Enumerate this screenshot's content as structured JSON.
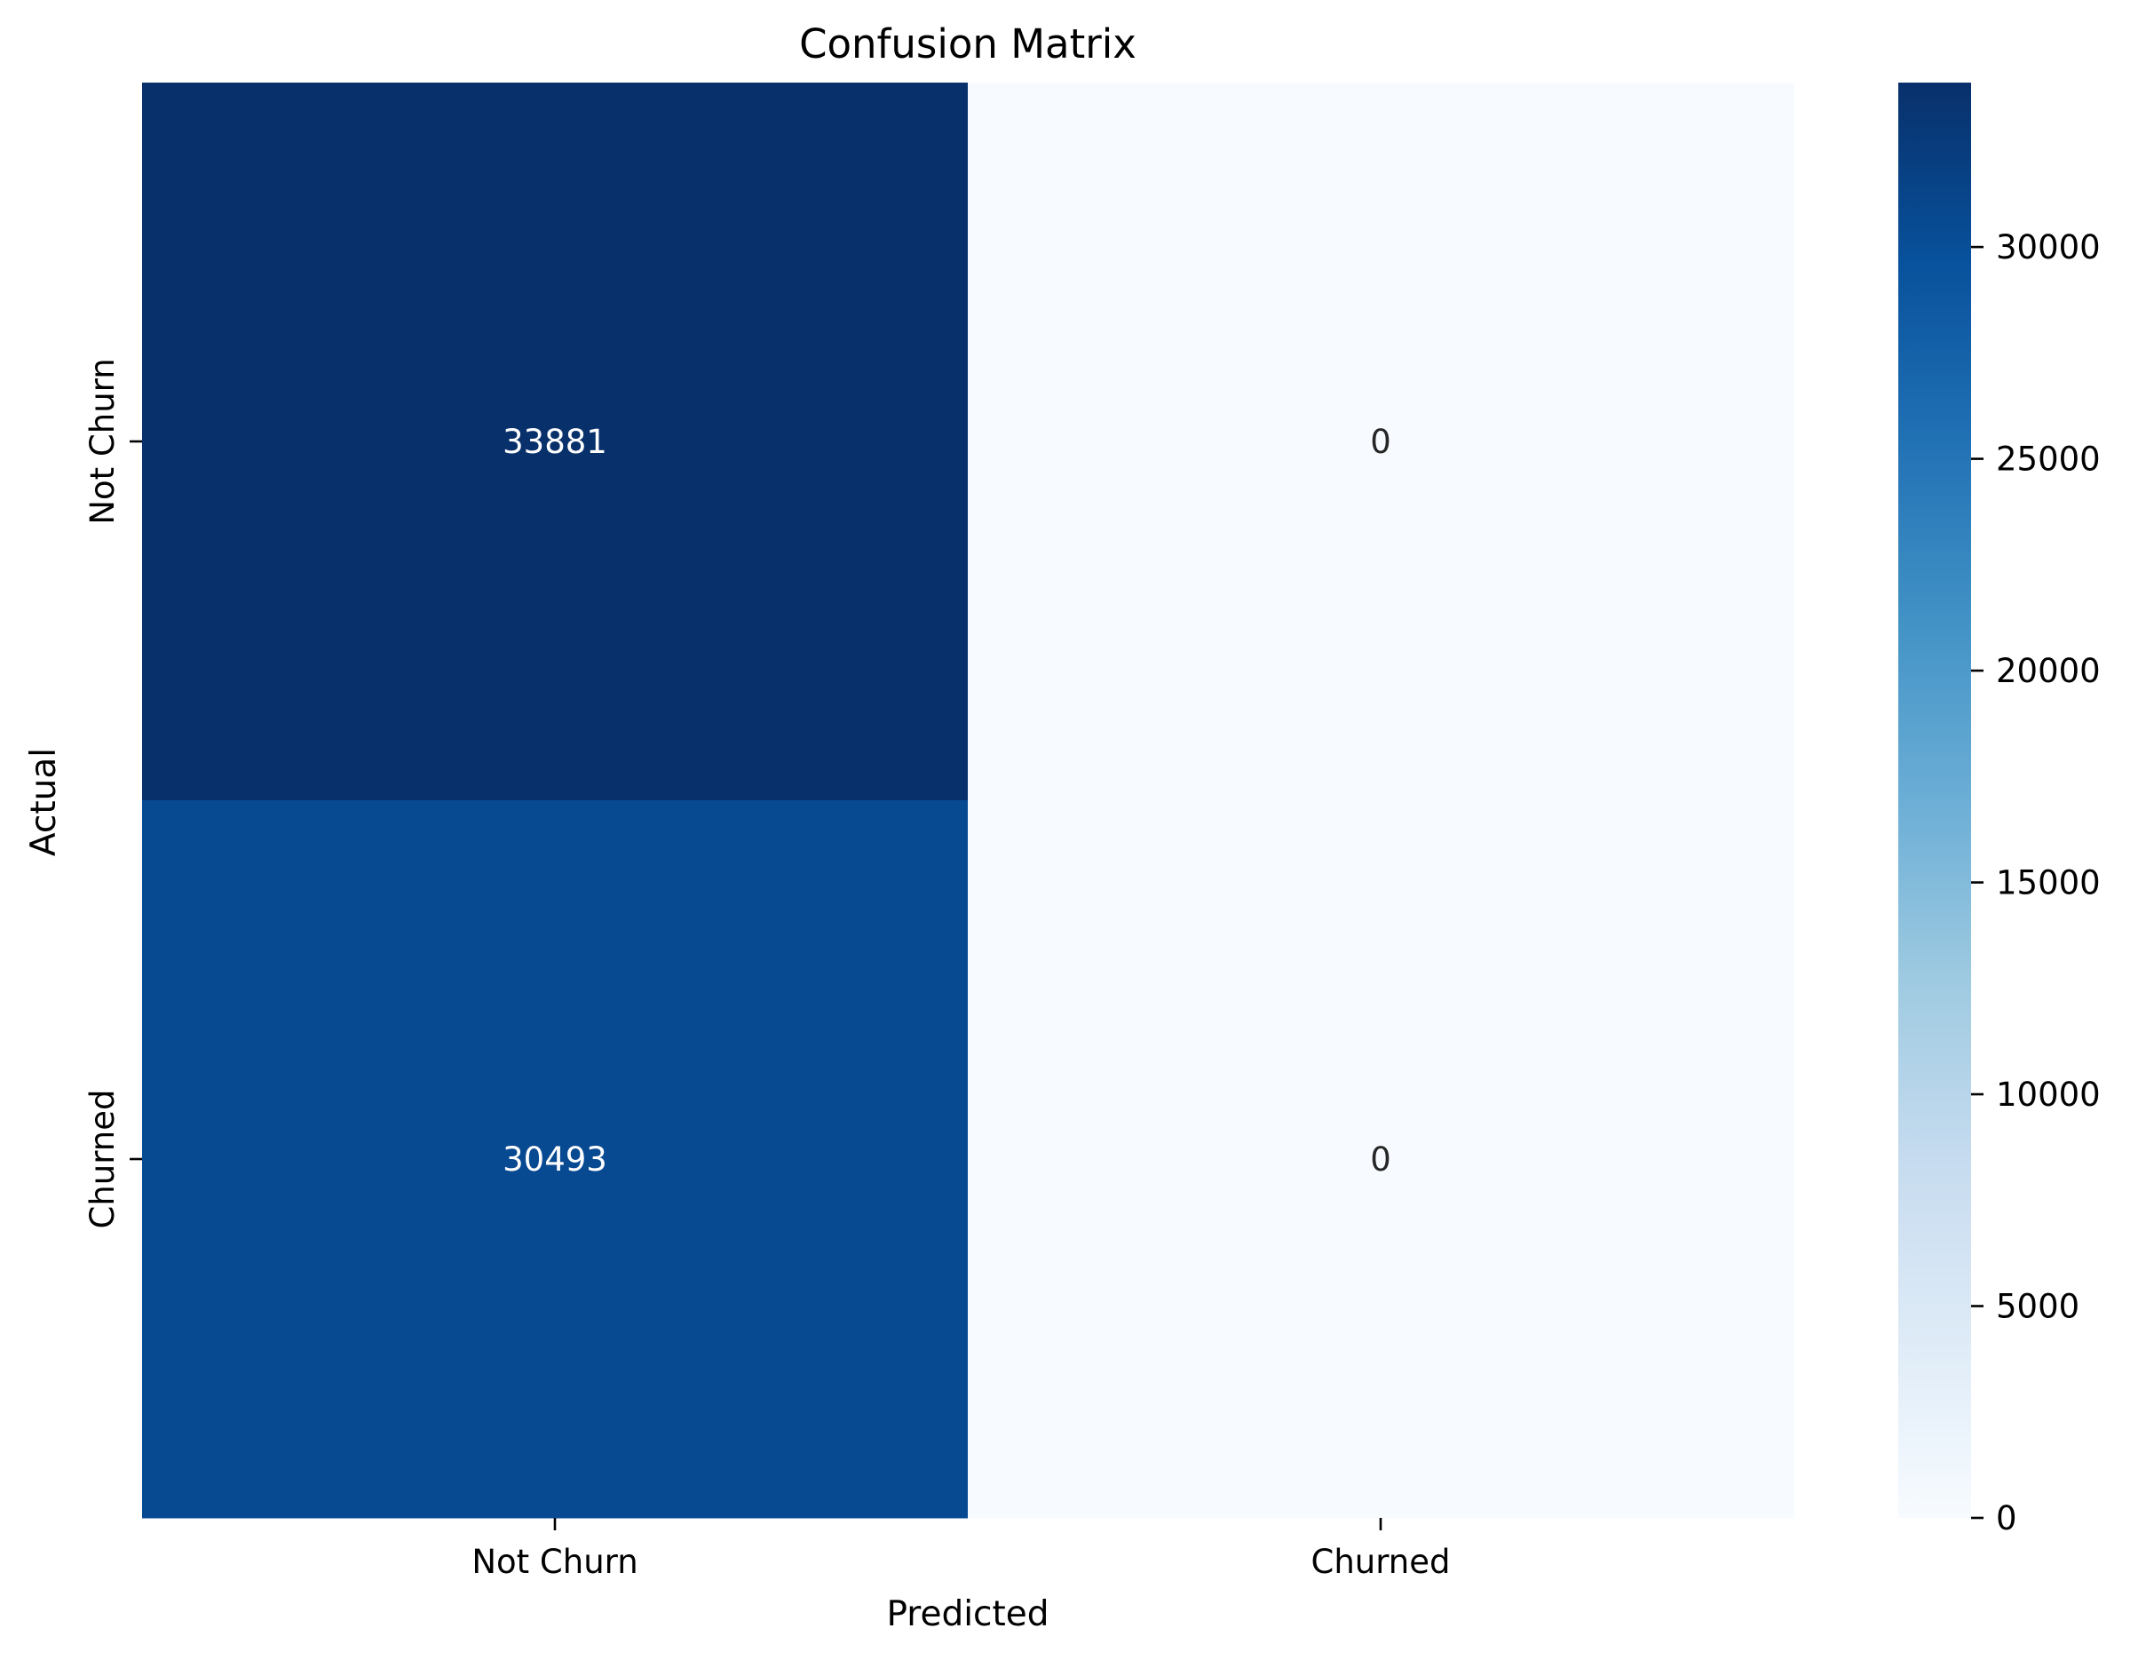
{
  "chart_data": {
    "type": "heatmap",
    "title": "Confusion Matrix",
    "xlabel": "Predicted",
    "ylabel": "Actual",
    "x_categories": [
      "Not Churn",
      "Churned"
    ],
    "y_categories": [
      "Not Churn",
      "Churned"
    ],
    "values": [
      [
        33881,
        0
      ],
      [
        30493,
        0
      ]
    ],
    "colormap": "Blues",
    "colorbar": {
      "min": 0,
      "max": 33881,
      "ticks": [
        0,
        5000,
        10000,
        15000,
        20000,
        25000,
        30000
      ]
    },
    "grid": false,
    "legend": "colorbar-right"
  }
}
